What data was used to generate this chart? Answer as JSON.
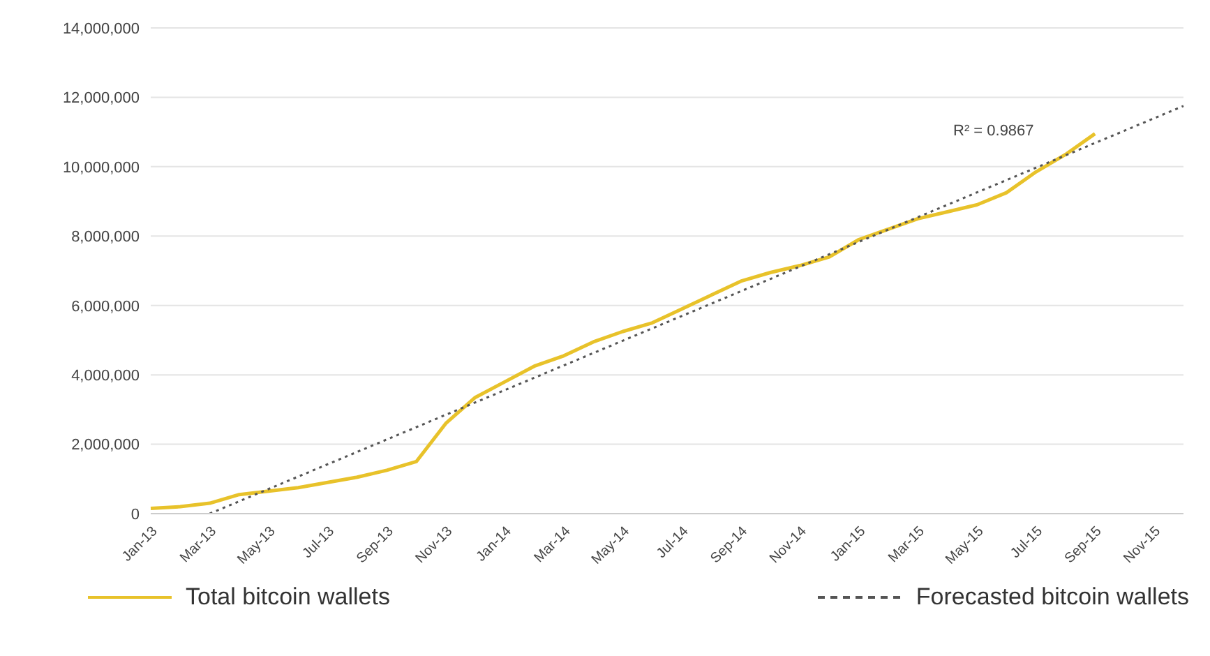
{
  "chart_data": {
    "type": "line",
    "categories": [
      "Jan-13",
      null,
      "Mar-13",
      null,
      "May-13",
      null,
      "Jul-13",
      null,
      "Sep-13",
      null,
      "Nov-13",
      null,
      "Jan-14",
      null,
      "Mar-14",
      null,
      "May-14",
      null,
      "Jul-14",
      null,
      "Sep-14",
      null,
      "Nov-14",
      null,
      "Jan-15",
      null,
      "Mar-15",
      null,
      "May-15",
      null,
      "Jul-15",
      null,
      "Sep-15",
      null,
      "Nov-15",
      null
    ],
    "series": [
      {
        "name": "Total bitcoin wallets",
        "color": "#e8c22a",
        "line_style": "solid",
        "values": [
          150000,
          200000,
          300000,
          550000,
          650000,
          750000,
          900000,
          1050000,
          1250000,
          1500000,
          2600000,
          3350000,
          3800000,
          4250000,
          4550000,
          4950000,
          5250000,
          5500000,
          5900000,
          6300000,
          6700000,
          6950000,
          7150000,
          7400000,
          7900000,
          8200000,
          8500000,
          8700000,
          8900000,
          9250000,
          9850000,
          10350000,
          10950000,
          null,
          null,
          null
        ]
      },
      {
        "name": "Forecasted bitcoin wallets",
        "color": "#555555",
        "line_style": "dotted",
        "values": [
          null,
          null,
          0,
          null,
          null,
          null,
          null,
          null,
          null,
          null,
          null,
          null,
          null,
          null,
          null,
          null,
          null,
          null,
          null,
          null,
          null,
          null,
          null,
          null,
          null,
          null,
          null,
          null,
          null,
          null,
          null,
          null,
          null,
          null,
          null,
          11750000
        ]
      }
    ],
    "ylim": [
      0,
      14000000
    ],
    "yticks": [
      0,
      {
        "value": 2000000,
        "label": "2,000,000"
      },
      {
        "value": 4000000,
        "label": "4,000,000"
      },
      {
        "value": 6000000,
        "label": "6,000,000"
      },
      {
        "value": 8000000,
        "label": "8,000,000"
      },
      {
        "value": 10000000,
        "label": "10,000,000"
      },
      {
        "value": 12000000,
        "label": "12,000,000"
      },
      {
        "value": 14000000,
        "label": "14,000,000"
      }
    ],
    "grid": "y",
    "legend": "bottom",
    "marker": "none",
    "annotations": [
      "R² = 0.9867"
    ]
  }
}
